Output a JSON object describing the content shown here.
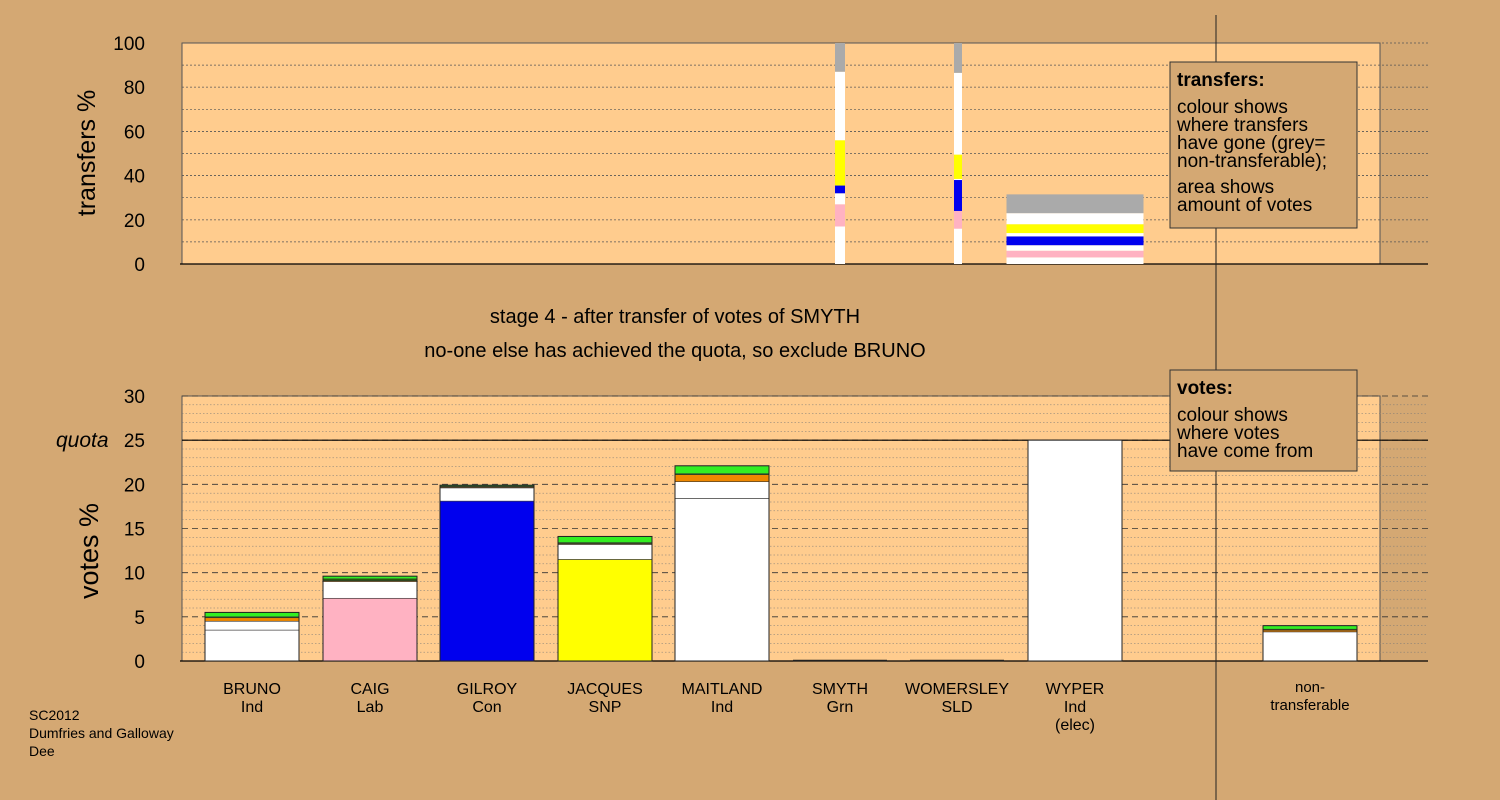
{
  "colors": {
    "background": "#d4a873",
    "plot_bg": "#ffcc8e",
    "grey": "#aaaaaa",
    "white": "#ffffff",
    "yellow": "#ffff00",
    "blue": "#0000ee",
    "pink": "#ffb2c2",
    "green": "#33ee22",
    "orange": "#ee8800",
    "dark_green": "#226600"
  },
  "headings": {
    "stage": "stage 4 - after transfer of votes of SMYTH",
    "note": "no-one else has achieved the quota, so exclude BRUNO"
  },
  "footer": {
    "lines": [
      "SC2012",
      "Dumfries and Galloway",
      "Dee"
    ]
  },
  "candidates": [
    {
      "name": "BRUNO",
      "party": "Ind",
      "extra": ""
    },
    {
      "name": "CAIG",
      "party": "Lab",
      "extra": ""
    },
    {
      "name": "GILROY",
      "party": "Con",
      "extra": ""
    },
    {
      "name": "JACQUES",
      "party": "SNP",
      "extra": ""
    },
    {
      "name": "MAITLAND",
      "party": "Ind",
      "extra": ""
    },
    {
      "name": "SMYTH",
      "party": "Grn",
      "extra": ""
    },
    {
      "name": "WOMERSLEY",
      "party": "SLD",
      "extra": ""
    },
    {
      "name": "WYPER",
      "party": "Ind",
      "extra": "(elec)"
    }
  ],
  "nontransferable_label": [
    "non-",
    "transferable"
  ],
  "legends": {
    "transfers": {
      "title": "transfers:",
      "lines": [
        "colour shows",
        "where transfers",
        "have gone (grey=",
        "non-transferable);",
        "area shows",
        "amount of votes"
      ]
    },
    "votes": {
      "title": "votes:",
      "lines": [
        "colour shows",
        "where votes",
        "have come from"
      ]
    }
  },
  "chart_data": [
    {
      "type": "bar",
      "id": "transfers",
      "ylabel": "transfers %",
      "ylim": [
        0,
        100
      ],
      "yticks": [
        0,
        20,
        40,
        60,
        80,
        100
      ],
      "legend_placement": "top-right",
      "bars": [
        {
          "candidate": "SMYTH",
          "segments": [
            {
              "color": "white",
              "value": 17
            },
            {
              "color": "pink",
              "value": 10
            },
            {
              "color": "white",
              "value": 5
            },
            {
              "color": "blue",
              "value": 3.5
            },
            {
              "color": "yellow",
              "value": 20.5
            },
            {
              "color": "white",
              "value": 31
            },
            {
              "color": "grey",
              "value": 13
            }
          ]
        },
        {
          "candidate": "WOMERSLEY",
          "segments": [
            {
              "color": "white",
              "value": 16
            },
            {
              "color": "pink",
              "value": 8
            },
            {
              "color": "blue",
              "value": 14
            },
            {
              "color": "white",
              "value": 0.5
            },
            {
              "color": "yellow",
              "value": 11
            },
            {
              "color": "white",
              "value": 37
            },
            {
              "color": "grey",
              "value": 13.5
            }
          ]
        },
        {
          "candidate": "WYPER",
          "segments": [
            {
              "color": "white",
              "value": 3
            },
            {
              "color": "pink",
              "value": 3
            },
            {
              "color": "white",
              "value": 2.5
            },
            {
              "color": "blue",
              "value": 4
            },
            {
              "color": "white",
              "value": 1.5
            },
            {
              "color": "yellow",
              "value": 4
            },
            {
              "color": "white",
              "value": 5
            },
            {
              "color": "grey",
              "value": 8.5
            }
          ]
        }
      ]
    },
    {
      "type": "bar",
      "id": "votes",
      "ylabel": "votes %",
      "ylim": [
        0,
        30
      ],
      "yticks": [
        0,
        5,
        10,
        15,
        20,
        25,
        30
      ],
      "quota": 25,
      "quota_label": "quota",
      "legend_placement": "top-right",
      "bars": [
        {
          "candidate": "BRUNO",
          "segments": [
            {
              "color": "white",
              "value": 3.5
            },
            {
              "color": "white",
              "value": 1
            },
            {
              "color": "orange",
              "value": 0.4
            },
            {
              "color": "dark_green",
              "value": 0.1
            },
            {
              "color": "green",
              "value": 0.5
            }
          ]
        },
        {
          "candidate": "CAIG",
          "segments": [
            {
              "color": "pink",
              "value": 7.1
            },
            {
              "color": "white",
              "value": 1.9
            },
            {
              "color": "orange",
              "value": 0.1
            },
            {
              "color": "dark_green",
              "value": 0.2
            },
            {
              "color": "green",
              "value": 0.3
            }
          ]
        },
        {
          "candidate": "GILROY",
          "segments": [
            {
              "color": "blue",
              "value": 18.1
            },
            {
              "color": "white",
              "value": 1.5
            },
            {
              "color": "orange",
              "value": 0.1
            },
            {
              "color": "dark_green",
              "value": 0.1
            },
            {
              "color": "green",
              "value": 0.1
            }
          ]
        },
        {
          "candidate": "JACQUES",
          "segments": [
            {
              "color": "yellow",
              "value": 11.5
            },
            {
              "color": "white",
              "value": 1.7
            },
            {
              "color": "orange",
              "value": 0.1
            },
            {
              "color": "dark_green",
              "value": 0.1
            },
            {
              "color": "green",
              "value": 0.7
            }
          ]
        },
        {
          "candidate": "MAITLAND",
          "segments": [
            {
              "color": "white",
              "value": 18.4
            },
            {
              "color": "white",
              "value": 1.9
            },
            {
              "color": "orange",
              "value": 0.8
            },
            {
              "color": "dark_green",
              "value": 0.1
            },
            {
              "color": "green",
              "value": 0.9
            }
          ]
        },
        {
          "candidate": "SMYTH",
          "segments": []
        },
        {
          "candidate": "WOMERSLEY",
          "segments": []
        },
        {
          "candidate": "WYPER",
          "segments": [
            {
              "color": "white",
              "value": 25
            }
          ]
        },
        {
          "candidate": "non-transferable",
          "segments": [
            {
              "color": "white",
              "value": 3.3
            },
            {
              "color": "orange",
              "value": 0.2
            },
            {
              "color": "dark_green",
              "value": 0.1
            },
            {
              "color": "green",
              "value": 0.4
            }
          ]
        }
      ]
    }
  ]
}
